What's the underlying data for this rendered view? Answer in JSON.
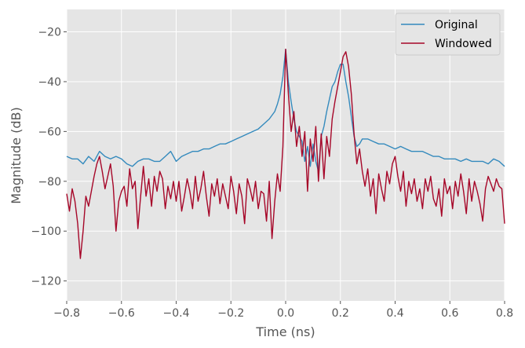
{
  "chart_data": {
    "type": "line",
    "title": "",
    "xlabel": "Time (ns)",
    "ylabel": "Magnitude (dB)",
    "xlim": [
      -0.8,
      0.8
    ],
    "ylim": [
      -128,
      -11
    ],
    "x_ticks": [
      -0.8,
      -0.6,
      -0.4,
      -0.2,
      0.0,
      0.2,
      0.4,
      0.6,
      0.8
    ],
    "x_tick_labels": [
      "−0.8",
      "−0.6",
      "−0.4",
      "−0.2",
      "0.0",
      "0.2",
      "0.4",
      "0.6",
      "0.8"
    ],
    "y_ticks": [
      -20,
      -40,
      -60,
      -80,
      -100,
      -120
    ],
    "y_tick_labels": [
      "−20",
      "−40",
      "−60",
      "−80",
      "−100",
      "−120"
    ],
    "grid": true,
    "legend_position": "top-right",
    "series": [
      {
        "name": "Original",
        "color": "#348abd",
        "x": [
          -0.8,
          -0.78,
          -0.76,
          -0.74,
          -0.72,
          -0.7,
          -0.68,
          -0.66,
          -0.64,
          -0.62,
          -0.6,
          -0.58,
          -0.56,
          -0.54,
          -0.52,
          -0.5,
          -0.48,
          -0.46,
          -0.44,
          -0.42,
          -0.4,
          -0.38,
          -0.36,
          -0.34,
          -0.32,
          -0.3,
          -0.28,
          -0.26,
          -0.24,
          -0.22,
          -0.2,
          -0.18,
          -0.16,
          -0.14,
          -0.12,
          -0.1,
          -0.08,
          -0.06,
          -0.04,
          -0.03,
          -0.02,
          -0.01,
          0.0,
          0.01,
          0.02,
          0.03,
          0.04,
          0.05,
          0.06,
          0.07,
          0.08,
          0.09,
          0.1,
          0.11,
          0.12,
          0.13,
          0.14,
          0.15,
          0.16,
          0.17,
          0.18,
          0.19,
          0.2,
          0.21,
          0.22,
          0.23,
          0.24,
          0.25,
          0.26,
          0.27,
          0.28,
          0.3,
          0.32,
          0.34,
          0.36,
          0.38,
          0.4,
          0.42,
          0.44,
          0.46,
          0.48,
          0.5,
          0.52,
          0.54,
          0.56,
          0.58,
          0.6,
          0.62,
          0.64,
          0.66,
          0.68,
          0.7,
          0.72,
          0.74,
          0.76,
          0.78,
          0.8
        ],
        "y": [
          -70,
          -71,
          -71,
          -73,
          -70,
          -72,
          -68,
          -70,
          -71,
          -70,
          -71,
          -73,
          -74,
          -72,
          -71,
          -71,
          -72,
          -72,
          -70,
          -68,
          -72,
          -70,
          -69,
          -68,
          -68,
          -67,
          -67,
          -66,
          -65,
          -65,
          -64,
          -63,
          -62,
          -61,
          -60,
          -59,
          -57,
          -55,
          -52,
          -49,
          -45,
          -38,
          -27,
          -40,
          -48,
          -55,
          -60,
          -62,
          -64,
          -72,
          -66,
          -74,
          -65,
          -72,
          -76,
          -62,
          -58,
          -52,
          -47,
          -42,
          -40,
          -36,
          -33,
          -33,
          -40,
          -46,
          -54,
          -62,
          -66,
          -65,
          -63,
          -63,
          -64,
          -65,
          -65,
          -66,
          -67,
          -66,
          -67,
          -68,
          -68,
          -68,
          -69,
          -70,
          -70,
          -71,
          -71,
          -71,
          -72,
          -71,
          -72,
          -72,
          -72,
          -73,
          -71,
          -72,
          -74
        ]
      },
      {
        "name": "Windowed",
        "color": "#a60628",
        "x": [
          -0.8,
          -0.79,
          -0.78,
          -0.77,
          -0.76,
          -0.75,
          -0.74,
          -0.73,
          -0.72,
          -0.71,
          -0.7,
          -0.69,
          -0.68,
          -0.67,
          -0.66,
          -0.65,
          -0.64,
          -0.63,
          -0.62,
          -0.61,
          -0.6,
          -0.59,
          -0.58,
          -0.57,
          -0.56,
          -0.55,
          -0.54,
          -0.53,
          -0.52,
          -0.51,
          -0.5,
          -0.49,
          -0.48,
          -0.47,
          -0.46,
          -0.45,
          -0.44,
          -0.43,
          -0.42,
          -0.41,
          -0.4,
          -0.39,
          -0.38,
          -0.37,
          -0.36,
          -0.35,
          -0.34,
          -0.33,
          -0.32,
          -0.31,
          -0.3,
          -0.29,
          -0.28,
          -0.27,
          -0.26,
          -0.25,
          -0.24,
          -0.23,
          -0.22,
          -0.21,
          -0.2,
          -0.19,
          -0.18,
          -0.17,
          -0.16,
          -0.15,
          -0.14,
          -0.13,
          -0.12,
          -0.11,
          -0.1,
          -0.09,
          -0.08,
          -0.07,
          -0.06,
          -0.05,
          -0.04,
          -0.03,
          -0.02,
          -0.01,
          0.0,
          0.01,
          0.02,
          0.03,
          0.04,
          0.05,
          0.06,
          0.07,
          0.08,
          0.09,
          0.1,
          0.11,
          0.12,
          0.13,
          0.14,
          0.15,
          0.16,
          0.17,
          0.18,
          0.19,
          0.2,
          0.21,
          0.22,
          0.23,
          0.24,
          0.25,
          0.26,
          0.27,
          0.28,
          0.29,
          0.3,
          0.31,
          0.32,
          0.33,
          0.34,
          0.35,
          0.36,
          0.37,
          0.38,
          0.39,
          0.4,
          0.41,
          0.42,
          0.43,
          0.44,
          0.45,
          0.46,
          0.47,
          0.48,
          0.49,
          0.5,
          0.51,
          0.52,
          0.53,
          0.54,
          0.55,
          0.56,
          0.57,
          0.58,
          0.59,
          0.6,
          0.61,
          0.62,
          0.63,
          0.64,
          0.65,
          0.66,
          0.67,
          0.68,
          0.69,
          0.7,
          0.71,
          0.72,
          0.73,
          0.74,
          0.75,
          0.76,
          0.77,
          0.78,
          0.79,
          0.8
        ],
        "y": [
          -85,
          -92,
          -83,
          -88,
          -97,
          -111,
          -100,
          -86,
          -90,
          -84,
          -78,
          -73,
          -70,
          -76,
          -83,
          -78,
          -73,
          -82,
          -100,
          -88,
          -84,
          -82,
          -90,
          -75,
          -83,
          -80,
          -99,
          -86,
          -74,
          -86,
          -79,
          -90,
          -78,
          -84,
          -76,
          -79,
          -91,
          -82,
          -87,
          -80,
          -88,
          -80,
          -92,
          -86,
          -79,
          -84,
          -91,
          -78,
          -88,
          -83,
          -76,
          -86,
          -94,
          -81,
          -86,
          -79,
          -89,
          -81,
          -86,
          -91,
          -78,
          -84,
          -93,
          -81,
          -86,
          -97,
          -79,
          -83,
          -88,
          -80,
          -91,
          -84,
          -85,
          -96,
          -80,
          -103,
          -88,
          -77,
          -84,
          -66,
          -27,
          -45,
          -60,
          -52,
          -66,
          -58,
          -70,
          -60,
          -84,
          -63,
          -72,
          -58,
          -80,
          -61,
          -79,
          -62,
          -70,
          -55,
          -48,
          -42,
          -36,
          -30,
          -28,
          -34,
          -45,
          -61,
          -73,
          -67,
          -76,
          -82,
          -75,
          -86,
          -79,
          -93,
          -77,
          -83,
          -88,
          -76,
          -81,
          -73,
          -70,
          -78,
          -84,
          -76,
          -90,
          -80,
          -85,
          -79,
          -88,
          -83,
          -91,
          -79,
          -84,
          -78,
          -87,
          -90,
          -83,
          -94,
          -79,
          -85,
          -82,
          -91,
          -80,
          -86,
          -77,
          -84,
          -93,
          -79,
          -88,
          -80,
          -84,
          -89,
          -96,
          -83,
          -78,
          -81,
          -84,
          -79,
          -82,
          -83,
          -97
        ]
      }
    ]
  }
}
